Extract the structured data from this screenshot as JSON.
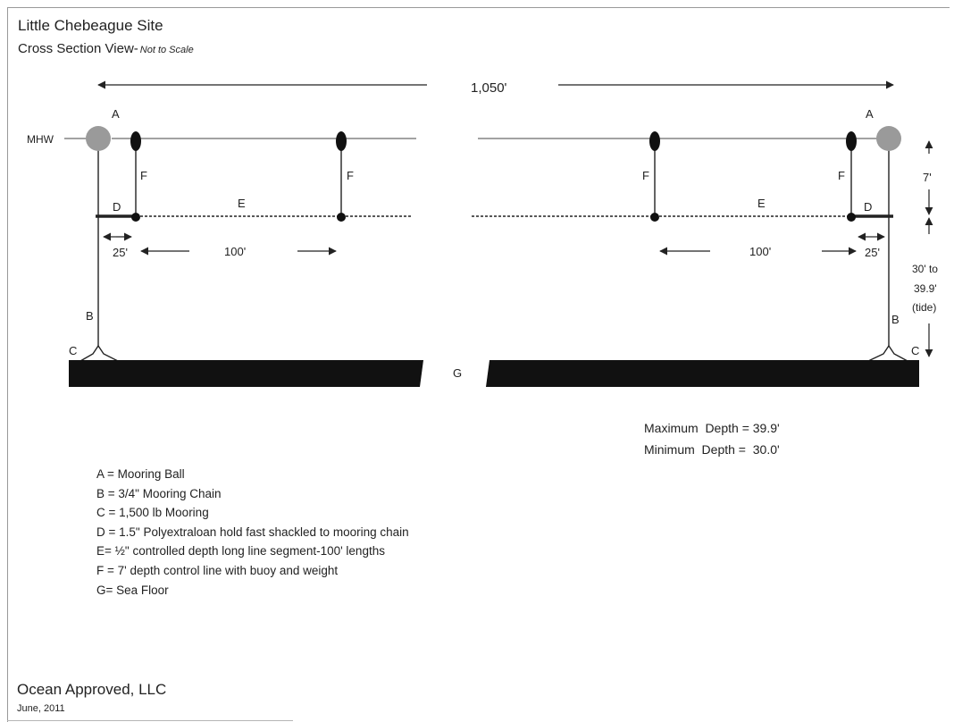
{
  "title": "Little Chebeague Site",
  "subtitle": "Cross Section View-",
  "subtitle_note": "Not to Scale",
  "colors": {
    "line": "#222222",
    "mooring_ball": "#9a9a9a",
    "sea_floor": "#111111"
  },
  "diagram": {
    "total_length": "1,050'",
    "mhw_label": "MHW",
    "depth_control_length": "7'",
    "tide_depth_label": [
      "30' to",
      "39.9'",
      "(tide)"
    ],
    "left": {
      "ball_label": "A",
      "chain_label": "B",
      "mooring_label": "C",
      "hold_fast_label": "D",
      "line_label": "E",
      "control_labels": [
        "F",
        "F"
      ],
      "dim_hold_fast": "25'",
      "dim_segment": "100'"
    },
    "right": {
      "ball_label": "A",
      "chain_label": "B",
      "mooring_label": "C",
      "hold_fast_label": "D",
      "line_label": "E",
      "control_labels": [
        "F",
        "F"
      ],
      "dim_hold_fast": "25'",
      "dim_segment": "100'"
    },
    "sea_floor_label": "G"
  },
  "depths": {
    "max": "Maximum  Depth = 39.9'",
    "min": "Minimum  Depth =  30.0'"
  },
  "legend": [
    "A = Mooring Ball",
    "B = 3/4\" Mooring Chain",
    "C = 1,500 lb Mooring",
    "D = 1.5\" Polyextraloan hold fast shackled to mooring chain",
    "E= ½\" controlled depth long line segment-100' lengths",
    "F = 7' depth control line with buoy and weight",
    "G= Sea Floor"
  ],
  "footer": {
    "company": "Ocean Approved, LLC",
    "date": "June, 2011"
  }
}
